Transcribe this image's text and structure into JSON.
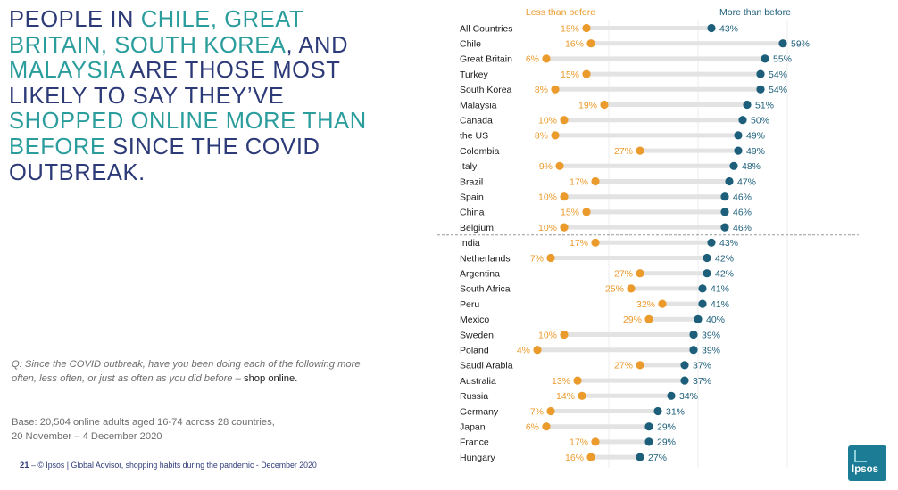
{
  "headline": {
    "p1": "PEOPLE IN ",
    "h1": "CHILE, GREAT BRITAIN, SOUTH KOREA",
    "p2": ", AND ",
    "h2": "MALAYSIA",
    "p3": " ARE THOSE MOST LIKELY TO SAY THEY’VE ",
    "h3": "SHOPPED ONLINE MORE THAN BEFORE",
    "p4": "  SINCE THE COVID OUTBREAK."
  },
  "question": {
    "text": "Q: Since the COVID outbreak, have you been doing each of the following more often, less often, or just as often as you did before – ",
    "emphasis": "shop online."
  },
  "base": {
    "line1": "Base: 20,504 online adults aged 16-74 across 28 countries,",
    "line2": "20 November – 4 December 2020"
  },
  "footer": {
    "page": "21",
    "dash": " –  ",
    "text": "© Ipsos |  Global Advisor, shopping habits during the pandemic - December 2020"
  },
  "logo": {
    "text": "Ipsos"
  },
  "colors": {
    "less": "#eb9a2c",
    "more": "#1d5f7a",
    "bar": "#e3e3e3",
    "title_dark": "#2d3a78",
    "title_accent": "#2a9d9c"
  },
  "chart_data": {
    "type": "dumbbell",
    "series": [
      {
        "name": "Less than before",
        "color": "#eb9a2c"
      },
      {
        "name": "More than before",
        "color": "#1d5f7a"
      }
    ],
    "categories": [
      "All Countries",
      "Chile",
      "Great Britain",
      "Turkey",
      "South Korea",
      "Malaysia",
      "Canada",
      "the US",
      "Colombia",
      "Italy",
      "Brazil",
      "Spain",
      "China",
      "Belgium",
      "India",
      "Netherlands",
      "Argentina",
      "South Africa",
      "Peru",
      "Mexico",
      "Sweden",
      "Poland",
      "Saudi Arabia",
      "Australia",
      "Russia",
      "Germany",
      "Japan",
      "France",
      "Hungary"
    ],
    "less": [
      15,
      16,
      6,
      15,
      8,
      19,
      10,
      8,
      27,
      9,
      17,
      10,
      15,
      10,
      17,
      7,
      27,
      25,
      32,
      29,
      10,
      4,
      27,
      13,
      14,
      7,
      6,
      17,
      16
    ],
    "more": [
      43,
      59,
      55,
      54,
      54,
      51,
      50,
      49,
      49,
      48,
      47,
      46,
      46,
      46,
      43,
      42,
      42,
      41,
      41,
      40,
      39,
      39,
      37,
      37,
      34,
      31,
      29,
      29,
      27
    ],
    "value_suffix": "%",
    "xlim": [
      0,
      60
    ],
    "grid": true,
    "divider_after": "Belgium",
    "legend_position": "top"
  }
}
